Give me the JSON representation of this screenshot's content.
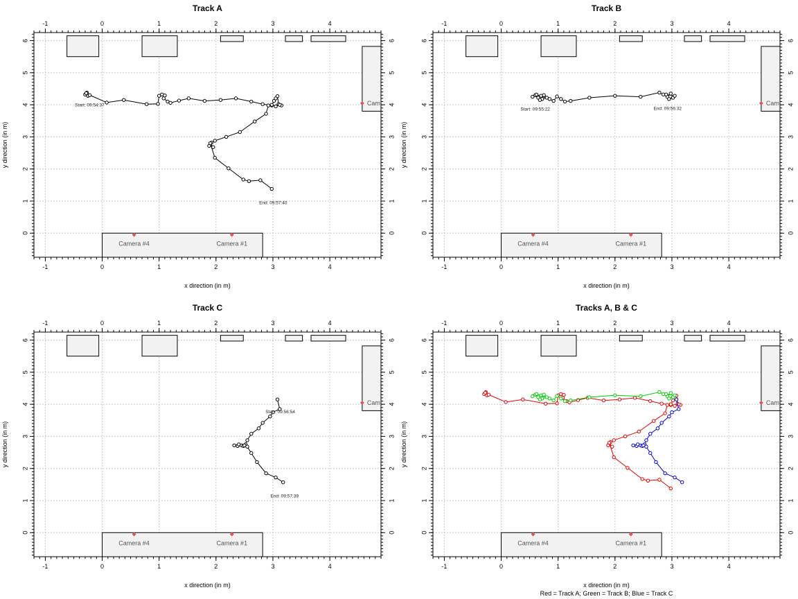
{
  "chart_data": [
    {
      "type": "scatter",
      "title": "Track A",
      "xlabel": "x direction (in m)",
      "ylabel": "y direction (in m)",
      "xlim": [
        -1.2,
        4.9
      ],
      "ylim": [
        -0.75,
        6.25
      ],
      "xticks": [
        -1,
        0,
        1,
        2,
        3,
        4
      ],
      "yticks": [
        0,
        1,
        2,
        3,
        4,
        5,
        6
      ],
      "grid": true,
      "series": [
        {
          "color": "#000000",
          "x": [
            -0.27,
            -0.3,
            -0.25,
            -0.28,
            -0.22,
            0.08,
            0.38,
            0.78,
            0.98,
            1.0,
            1.05,
            1.1,
            1.08,
            1.15,
            1.2,
            1.35,
            1.52,
            1.8,
            2.08,
            2.35,
            2.62,
            2.82,
            2.98,
            3.02,
            3.05,
            3.08,
            3.1,
            3.15,
            3.12,
            3.05,
            2.98,
            2.92,
            2.88,
            2.68,
            2.42,
            2.18,
            1.98,
            1.92,
            1.88,
            1.95,
            1.9,
            1.98,
            2.22,
            2.48,
            2.58,
            2.78,
            2.98
          ],
          "y": [
            4.38,
            4.32,
            4.28,
            4.36,
            4.3,
            4.07,
            4.15,
            4.02,
            4.03,
            4.28,
            4.32,
            4.29,
            4.2,
            4.1,
            4.06,
            4.13,
            4.2,
            4.12,
            4.15,
            4.2,
            4.1,
            4.02,
            3.98,
            4.12,
            4.2,
            4.27,
            4.02,
            3.98,
            4.0,
            3.95,
            4.0,
            3.98,
            3.72,
            3.48,
            3.15,
            3.0,
            2.88,
            2.82,
            2.72,
            2.68,
            2.8,
            2.35,
            2.02,
            1.67,
            1.62,
            1.65,
            1.38
          ],
          "start": "Start: 09:54:37",
          "end": "End: 09:57:40"
        }
      ],
      "cameras": [
        "Camera #4",
        "Camera #1",
        "Cam"
      ]
    },
    {
      "type": "scatter",
      "title": "Track B",
      "xlabel": "x direction (in m)",
      "ylabel": "y direction (in m)",
      "xlim": [
        -1.2,
        4.9
      ],
      "ylim": [
        -0.75,
        6.25
      ],
      "xticks": [
        -1,
        0,
        1,
        2,
        3,
        4
      ],
      "yticks": [
        0,
        1,
        2,
        3,
        4,
        5,
        6
      ],
      "grid": true,
      "series": [
        {
          "color": "#000000",
          "x": [
            0.55,
            0.6,
            0.65,
            0.7,
            0.72,
            0.75,
            0.8,
            0.68,
            0.62,
            0.85,
            0.92,
            0.98,
            1.05,
            1.12,
            1.22,
            1.55,
            2.0,
            2.45,
            2.78,
            2.85,
            2.92,
            2.98,
            3.02,
            2.95,
            3.05,
            2.9
          ],
          "y": [
            4.25,
            4.3,
            4.22,
            4.28,
            4.18,
            4.3,
            4.22,
            4.15,
            4.32,
            4.18,
            4.12,
            4.26,
            4.18,
            4.1,
            4.12,
            4.22,
            4.28,
            4.25,
            4.38,
            4.32,
            4.25,
            4.35,
            4.22,
            4.18,
            4.28,
            4.32
          ],
          "start": "Start: 09:55:22",
          "end": "End: 09:56:32"
        }
      ],
      "cameras": [
        "Camera #4",
        "Camera #1",
        "Cam"
      ]
    },
    {
      "type": "scatter",
      "title": "Track C",
      "xlabel": "x direction (in m)",
      "ylabel": "y direction (in m)",
      "xlim": [
        -1.2,
        4.9
      ],
      "ylim": [
        -0.75,
        6.25
      ],
      "xticks": [
        -1,
        0,
        1,
        2,
        3,
        4
      ],
      "yticks": [
        0,
        1,
        2,
        3,
        4,
        5,
        6
      ],
      "grid": true,
      "series": [
        {
          "color": "#000000",
          "x": [
            3.08,
            3.12,
            3.0,
            2.95,
            2.82,
            2.75,
            2.62,
            2.55,
            2.52,
            2.45,
            2.38,
            2.32,
            2.4,
            2.48,
            2.5,
            2.55,
            2.62,
            2.72,
            2.88,
            3.05,
            3.18
          ],
          "y": [
            4.15,
            3.85,
            3.75,
            3.62,
            3.42,
            3.25,
            3.08,
            2.88,
            2.75,
            2.72,
            2.7,
            2.72,
            2.75,
            2.7,
            2.72,
            2.68,
            2.48,
            2.2,
            1.85,
            1.72,
            1.57
          ],
          "start": "Start: 09:56:54",
          "end": "End: 09:57:39"
        }
      ],
      "cameras": [
        "Camera #4",
        "Camera #1",
        "Cam"
      ]
    },
    {
      "type": "scatter",
      "title": "Tracks A, B & C",
      "xlabel": "x direction (in m)",
      "ylabel": "y direction (in m)",
      "xlim": [
        -1.2,
        4.9
      ],
      "ylim": [
        -0.75,
        6.25
      ],
      "xticks": [
        -1,
        0,
        1,
        2,
        3,
        4
      ],
      "yticks": [
        0,
        1,
        2,
        3,
        4,
        5,
        6
      ],
      "grid": true,
      "caption": "Red = Track A; Green = Track B; Blue = Track C",
      "series": [
        {
          "source": 0,
          "color": "#e00000"
        },
        {
          "source": 1,
          "color": "#00cc00"
        },
        {
          "source": 2,
          "color": "#0000cc"
        }
      ],
      "cameras": [
        "Camera #4",
        "Camera #1",
        "Cam"
      ]
    }
  ]
}
